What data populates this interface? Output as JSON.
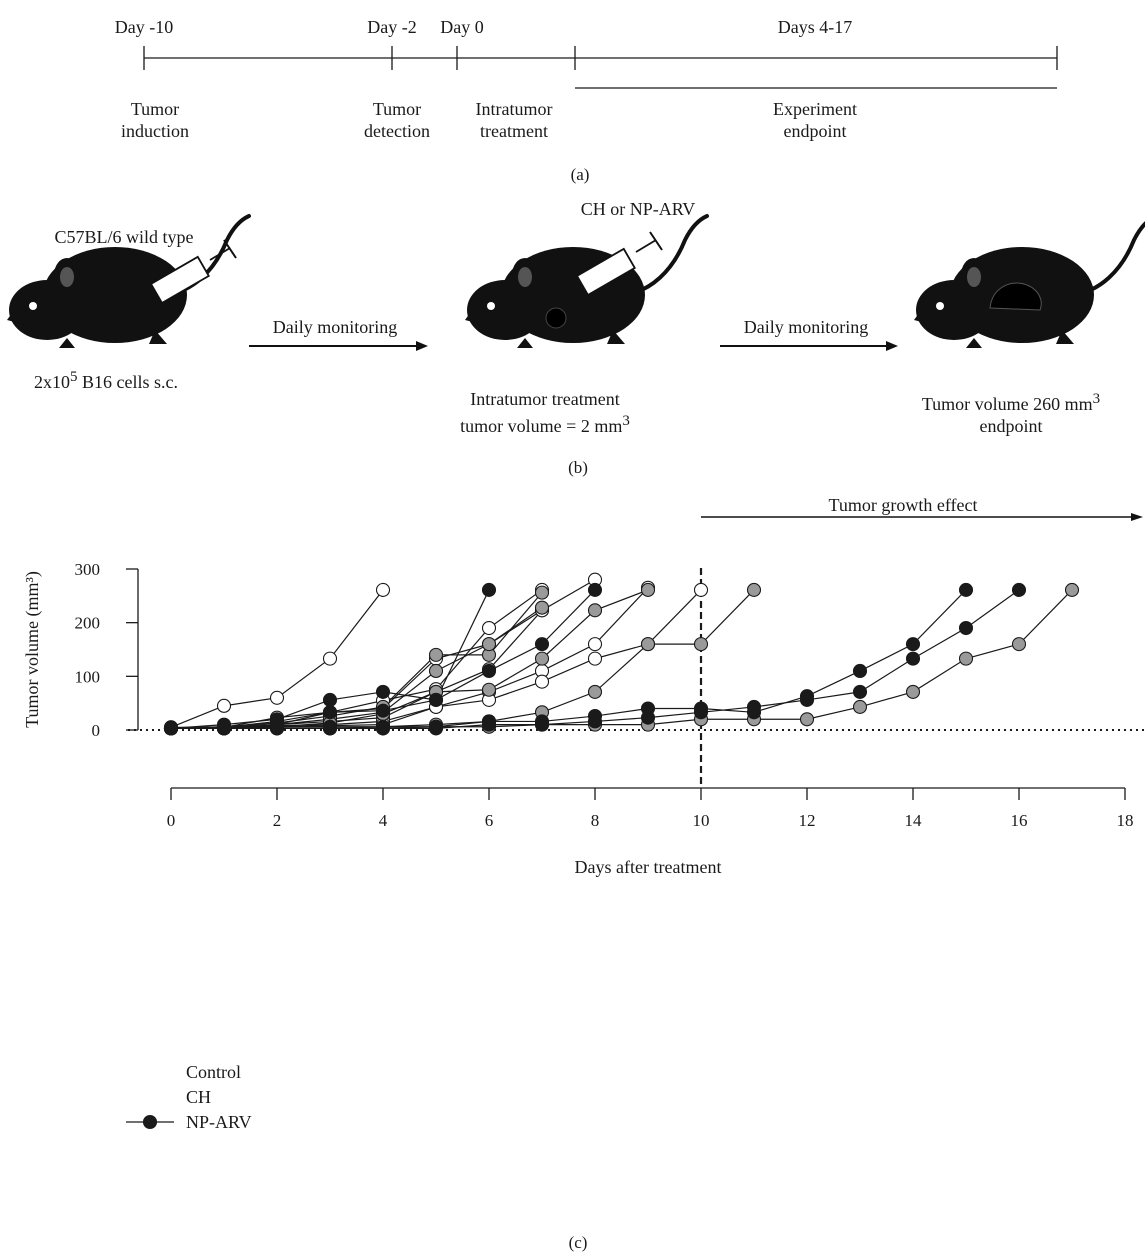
{
  "panel_a": {
    "timeline": [
      {
        "top": "Day -10",
        "bottom": [
          "Tumor",
          "induction"
        ]
      },
      {
        "top": "Day -2",
        "bottom": [
          "Tumor",
          "detection"
        ]
      },
      {
        "top": "Day 0",
        "bottom": [
          "Intratumor",
          "treatment"
        ]
      },
      {
        "top": "Days 4-17",
        "bottom": [
          "Experiment",
          "endpoint"
        ]
      }
    ],
    "caption": "(a)"
  },
  "panel_b": {
    "mouse1_label_top": "C57BL/6 wild type",
    "mouse1_label_bottom": {
      "prefix": "2x10",
      "sup": "5",
      "suffix": " B16 cells s.c."
    },
    "arrow1_label": "Daily monitoring",
    "mouse2_label_top": "CH or NP-ARV",
    "mouse2_label_bottom": [
      "Intratumor treatment",
      "tumor volume = 2 mm",
      "3"
    ],
    "arrow2_label": "Daily monitoring",
    "mouse3_label_bottom": [
      "Tumor volume 260 mm",
      "3",
      "endpoint"
    ],
    "caption": "(b)"
  },
  "panel_c": {
    "effect_label": "Tumor growth effect",
    "caption": "(c)"
  },
  "chart_data": {
    "type": "line",
    "xlabel": "Days after treatment",
    "ylabel": "Tumor volume (mm³)",
    "xlim": [
      0,
      18
    ],
    "ylim": [
      0,
      300
    ],
    "xticks": [
      0,
      2,
      4,
      6,
      8,
      10,
      12,
      14,
      16,
      18
    ],
    "yticks": [
      0,
      100,
      200,
      300
    ],
    "reference_lines": {
      "vertical_dashed_x": 10,
      "horizontal_dotted_y": 0
    },
    "legend": [
      {
        "name": "Control",
        "color": "#ffffff"
      },
      {
        "name": "CH",
        "color": "#9a9a9a"
      },
      {
        "name": "NP-ARV",
        "color": "#1a1a1a"
      }
    ],
    "series": [
      {
        "group": "Control",
        "x": [
          0,
          1,
          2,
          3,
          4
        ],
        "y": [
          5,
          45,
          60,
          133,
          261
        ]
      },
      {
        "group": "Control",
        "x": [
          0,
          1,
          2,
          3,
          4,
          5,
          6,
          7
        ],
        "y": [
          5,
          5,
          23,
          33,
          55,
          76,
          190,
          261
        ]
      },
      {
        "group": "Control",
        "x": [
          0,
          1,
          2,
          3,
          4,
          5,
          6,
          7
        ],
        "y": [
          3,
          5,
          16,
          33,
          40,
          133,
          160,
          223
        ]
      },
      {
        "group": "Control",
        "x": [
          0,
          1,
          2,
          3,
          4,
          5,
          6,
          7,
          8
        ],
        "y": [
          3,
          3,
          10,
          16,
          23,
          71,
          113,
          223,
          280
        ]
      },
      {
        "group": "Control",
        "x": [
          0,
          1,
          2,
          3,
          4,
          5,
          6,
          7,
          8,
          9
        ],
        "y": [
          3,
          3,
          8,
          10,
          16,
          43,
          71,
          110,
          160,
          265
        ]
      },
      {
        "group": "Control",
        "x": [
          0,
          1,
          2,
          3,
          4,
          5,
          6,
          7,
          8,
          9,
          10
        ],
        "y": [
          3,
          3,
          6,
          8,
          10,
          43,
          56,
          90,
          133,
          160,
          261
        ]
      },
      {
        "group": "CH",
        "x": [
          0,
          1,
          2,
          3,
          4,
          5,
          6,
          7
        ],
        "y": [
          3,
          6,
          13,
          26,
          43,
          140,
          140,
          256
        ]
      },
      {
        "group": "CH",
        "x": [
          0,
          1,
          2,
          3,
          4,
          5,
          6,
          7
        ],
        "y": [
          3,
          5,
          10,
          20,
          33,
          110,
          160,
          228
        ]
      },
      {
        "group": "CH",
        "x": [
          0,
          1,
          2,
          3,
          4,
          5,
          6,
          7,
          8,
          9
        ],
        "y": [
          3,
          3,
          6,
          13,
          30,
          71,
          75,
          133,
          223,
          261
        ]
      },
      {
        "group": "CH",
        "x": [
          0,
          1,
          2,
          3,
          4,
          5,
          6,
          7,
          8,
          9,
          10,
          11
        ],
        "y": [
          3,
          3,
          3,
          3,
          6,
          10,
          16,
          33,
          71,
          160,
          160,
          261
        ]
      },
      {
        "group": "CH",
        "x": [
          0,
          1,
          2,
          3,
          4,
          5,
          6,
          7,
          8,
          9,
          10,
          11,
          12,
          13,
          14,
          15,
          16,
          17
        ],
        "y": [
          3,
          3,
          3,
          3,
          3,
          6,
          6,
          10,
          10,
          10,
          20,
          20,
          20,
          43,
          71,
          133,
          160,
          261
        ]
      },
      {
        "group": "NP-ARV",
        "x": [
          0,
          1,
          2,
          3,
          4,
          5,
          6
        ],
        "y": [
          3,
          10,
          20,
          56,
          71,
          56,
          261
        ]
      },
      {
        "group": "NP-ARV",
        "x": [
          0,
          1,
          2,
          3,
          4,
          5,
          6,
          7,
          8
        ],
        "y": [
          3,
          6,
          10,
          33,
          36,
          56,
          110,
          160,
          261
        ]
      },
      {
        "group": "NP-ARV",
        "x": [
          0,
          1,
          2,
          3,
          4,
          5,
          6,
          7,
          8,
          9,
          10,
          11,
          12,
          13,
          14,
          15
        ],
        "y": [
          3,
          3,
          6,
          6,
          6,
          6,
          16,
          16,
          26,
          40,
          40,
          33,
          63,
          110,
          160,
          261
        ]
      },
      {
        "group": "NP-ARV",
        "x": [
          0,
          1,
          2,
          3,
          4,
          5,
          6,
          7,
          8,
          9,
          10,
          11,
          12,
          13,
          14,
          15,
          16
        ],
        "y": [
          3,
          3,
          3,
          3,
          3,
          3,
          10,
          10,
          16,
          23,
          33,
          43,
          56,
          71,
          133,
          190,
          261
        ]
      }
    ]
  }
}
